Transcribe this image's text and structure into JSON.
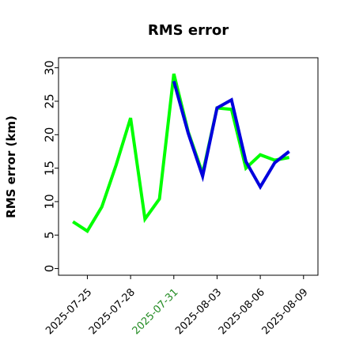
{
  "chart_data": {
    "type": "line",
    "title": "RMS error",
    "xlabel": "",
    "ylabel": "RMS error (km)",
    "ylim": [
      -1,
      31.5
    ],
    "xlim": [
      "2025-07-23T00:00",
      "2025-08-10T00:00"
    ],
    "yticks": [
      0,
      5,
      10,
      15,
      20,
      25,
      30
    ],
    "xticks": [
      {
        "date": "2025-07-25",
        "label": "2025-07-25",
        "color": "#000000"
      },
      {
        "date": "2025-07-28",
        "label": "2025-07-28",
        "color": "#000000"
      },
      {
        "date": "2025-07-31",
        "label": "2025-07-31",
        "color": "#228B22"
      },
      {
        "date": "2025-08-03",
        "label": "2025-08-03",
        "color": "#000000"
      },
      {
        "date": "2025-08-06",
        "label": "2025-08-06",
        "color": "#000000"
      },
      {
        "date": "2025-08-09",
        "label": "2025-08-09",
        "color": "#000000"
      }
    ],
    "grid": false,
    "legend": "none",
    "series": [
      {
        "color": "#00ff00",
        "x": [
          "2025-07-24",
          "2025-07-25",
          "2025-07-26",
          "2025-07-27",
          "2025-07-28",
          "2025-07-29",
          "2025-07-30",
          "2025-07-31",
          "2025-08-01",
          "2025-08-02",
          "2025-08-03",
          "2025-08-04",
          "2025-08-05",
          "2025-08-06",
          "2025-08-07",
          "2025-08-08"
        ],
        "y": [
          7.0,
          5.6,
          9.2,
          15.5,
          22.5,
          7.4,
          10.4,
          29.1,
          20.4,
          14.2,
          24.0,
          23.8,
          15.0,
          17.0,
          16.2,
          16.6
        ]
      },
      {
        "color": "#0000dd",
        "x": [
          "2025-07-31",
          "2025-08-01",
          "2025-08-02",
          "2025-08-03",
          "2025-08-04",
          "2025-08-05",
          "2025-08-06",
          "2025-08-07",
          "2025-08-08"
        ],
        "y": [
          28.0,
          20.2,
          13.8,
          24.0,
          25.2,
          16.0,
          12.2,
          15.8,
          17.5
        ]
      }
    ]
  }
}
